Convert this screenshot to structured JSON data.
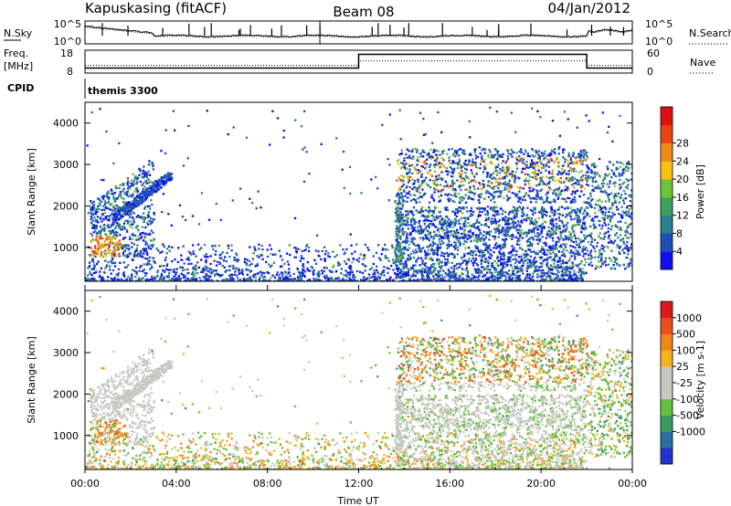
{
  "header": {
    "station": "Kapuskasing (fitACF)",
    "beam": "Beam 08",
    "date": "04/Jan/2012"
  },
  "chart_data": [
    {
      "type": "line",
      "panel": "noise",
      "left_label": "N.Sky",
      "right_label": "N.Search",
      "left_ticks": [
        "10^5",
        "10^0"
      ],
      "right_ticks": [
        "10^5",
        "10^0"
      ],
      "scale": "log",
      "ylim": [
        1,
        100000
      ]
    },
    {
      "type": "line",
      "panel": "frequency",
      "left_label_line1": "Freq.",
      "left_label_line2": "[MHz]",
      "right_label": "Nave",
      "left_ticks": [
        "18",
        "8"
      ],
      "right_ticks": [
        "60",
        "0"
      ],
      "ylim": [
        8,
        18
      ],
      "freq_segments": [
        {
          "x": [
            0,
            12
          ],
          "y": 10.2
        },
        {
          "x": [
            12,
            22
          ],
          "y": 16.2
        },
        {
          "x": [
            22,
            24
          ],
          "y": 10.2
        }
      ],
      "nave_segments": [
        {
          "x": [
            0,
            12
          ],
          "y": 20
        },
        {
          "x": [
            12,
            22
          ],
          "y": 32
        },
        {
          "x": [
            22,
            24
          ],
          "y": 20
        }
      ]
    },
    {
      "type": "text",
      "panel": "cpid",
      "label": "CPID",
      "program": "themis 3300"
    },
    {
      "type": "heatmap",
      "panel": "power",
      "ylabel": "Slant Range [km]",
      "ylim": [
        180,
        4500
      ],
      "yticks": [
        "1000",
        "2000",
        "3000",
        "4000"
      ],
      "colorbar_label": "Power [dB]",
      "colorbar_ticks": [
        "4",
        "8",
        "12",
        "16",
        "20",
        "24",
        "28"
      ],
      "colors": [
        "#1010ee",
        "#1f4fb4",
        "#2c7d8e",
        "#3fa05a",
        "#6cc436",
        "#f5c211",
        "#f08a18",
        "#e84412",
        "#dd1010"
      ]
    },
    {
      "type": "heatmap",
      "panel": "velocity",
      "ylabel": "Slant Range [km]",
      "ylim": [
        180,
        4500
      ],
      "yticks": [
        "1000",
        "2000",
        "3000",
        "4000"
      ],
      "colorbar_label": "Velocity [m s-1]",
      "colorbar_ticks": [
        "1000",
        "500",
        "100",
        "25",
        "-25",
        "-100",
        "-500",
        "-1000"
      ],
      "colors": [
        "#2233cc",
        "#2a6fa0",
        "#3d9a5f",
        "#66c03b",
        "#c8c8c3",
        "#c8c8c3",
        "#f3b420",
        "#f0861a",
        "#e8501a",
        "#dd1a1a"
      ]
    }
  ],
  "xaxis": {
    "label": "Time UT",
    "xlim": [
      0,
      24
    ],
    "ticks": [
      "00:00",
      "04:00",
      "08:00",
      "12:00",
      "16:00",
      "20:00",
      "00:00"
    ]
  }
}
